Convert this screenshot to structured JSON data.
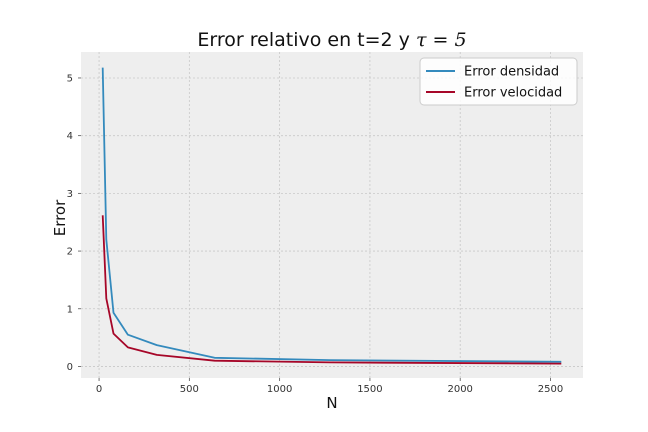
{
  "chart_data": {
    "type": "line",
    "title": "Error relativo en t=2 y ",
    "title_math": "τ = 5",
    "xlabel": "N",
    "ylabel": "Error",
    "xlim": [
      -100,
      2680
    ],
    "ylim": [
      -0.2,
      5.45
    ],
    "xticks": [
      0,
      500,
      1000,
      1500,
      2000,
      2500
    ],
    "yticks": [
      0,
      1,
      2,
      3,
      4,
      5
    ],
    "grid": true,
    "legend_position": "top-right",
    "series": [
      {
        "name": "Error densidad",
        "color": "#348ABD",
        "x": [
          20,
          40,
          80,
          160,
          320,
          640,
          1280,
          2560
        ],
        "y": [
          5.18,
          2.2,
          0.93,
          0.55,
          0.37,
          0.15,
          0.11,
          0.08
        ]
      },
      {
        "name": "Error velocidad",
        "color": "#A60628",
        "x": [
          20,
          40,
          80,
          160,
          320,
          640,
          1280,
          2560
        ],
        "y": [
          2.62,
          1.18,
          0.57,
          0.33,
          0.2,
          0.1,
          0.07,
          0.05
        ]
      }
    ]
  }
}
